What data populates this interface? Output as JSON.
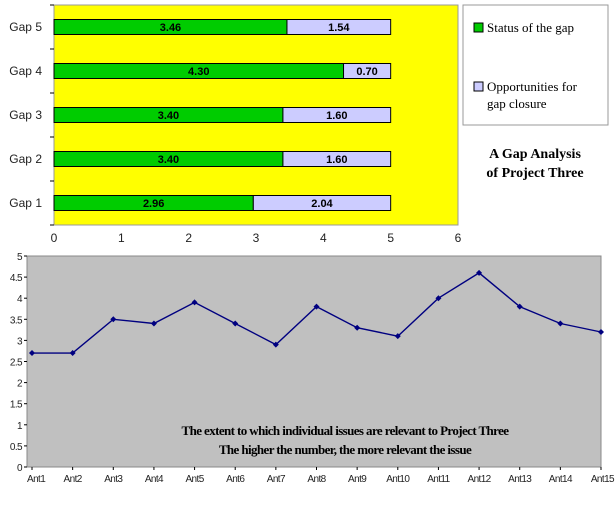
{
  "chart_data": [
    {
      "type": "bar",
      "stacked": true,
      "orientation": "horizontal",
      "title": "A Gap Analysis of Project Three",
      "title_lines": [
        "A Gap Analysis",
        "of Project Three"
      ],
      "categories": [
        "Gap 1",
        "Gap 2",
        "Gap 3",
        "Gap 4",
        "Gap 5"
      ],
      "series": [
        {
          "name": "Status of the gap",
          "values": [
            2.96,
            3.4,
            3.4,
            4.3,
            3.46
          ],
          "labels": [
            "2.96",
            "3.40",
            "3.40",
            "4.30",
            "3.46"
          ],
          "color": "#00cc00"
        },
        {
          "name": "Opportunities for gap closure",
          "name_lines": [
            "Opportunities for",
            "gap closure"
          ],
          "values": [
            2.04,
            1.6,
            1.6,
            0.7,
            1.54
          ],
          "labels": [
            "2.04",
            "1.60",
            "1.60",
            "0.70",
            "1.54"
          ],
          "color": "#ccccff"
        }
      ],
      "xlim": [
        0,
        6
      ],
      "xticks": [
        "0",
        "1",
        "2",
        "3",
        "4",
        "5",
        "6"
      ],
      "plot_background": "#ffff00",
      "legend_position": "right"
    },
    {
      "type": "line",
      "categories": [
        "Ant1",
        "Ant2",
        "Ant3",
        "Ant4",
        "Ant5",
        "Ant6",
        "Ant7",
        "Ant8",
        "Ant9",
        "Ant10",
        "Ant11",
        "Ant12",
        "Ant13",
        "Ant14",
        "Ant15"
      ],
      "series": [
        {
          "values": [
            2.7,
            2.7,
            3.5,
            3.4,
            3.9,
            3.4,
            2.9,
            3.8,
            3.3,
            3.1,
            4.0,
            4.6,
            3.8,
            3.4,
            3.2
          ],
          "color": "#000080"
        }
      ],
      "ylim": [
        0,
        5
      ],
      "yticks": [
        "0",
        "0.5",
        "1",
        "1.5",
        "2",
        "2.5",
        "3",
        "3.5",
        "4",
        "4.5",
        "5"
      ],
      "plot_background": "#c0c0c0",
      "annotations": [
        "The extent to which individual issues are relevant to Project Three",
        "The higher the number, the more relevant the issue"
      ]
    }
  ]
}
